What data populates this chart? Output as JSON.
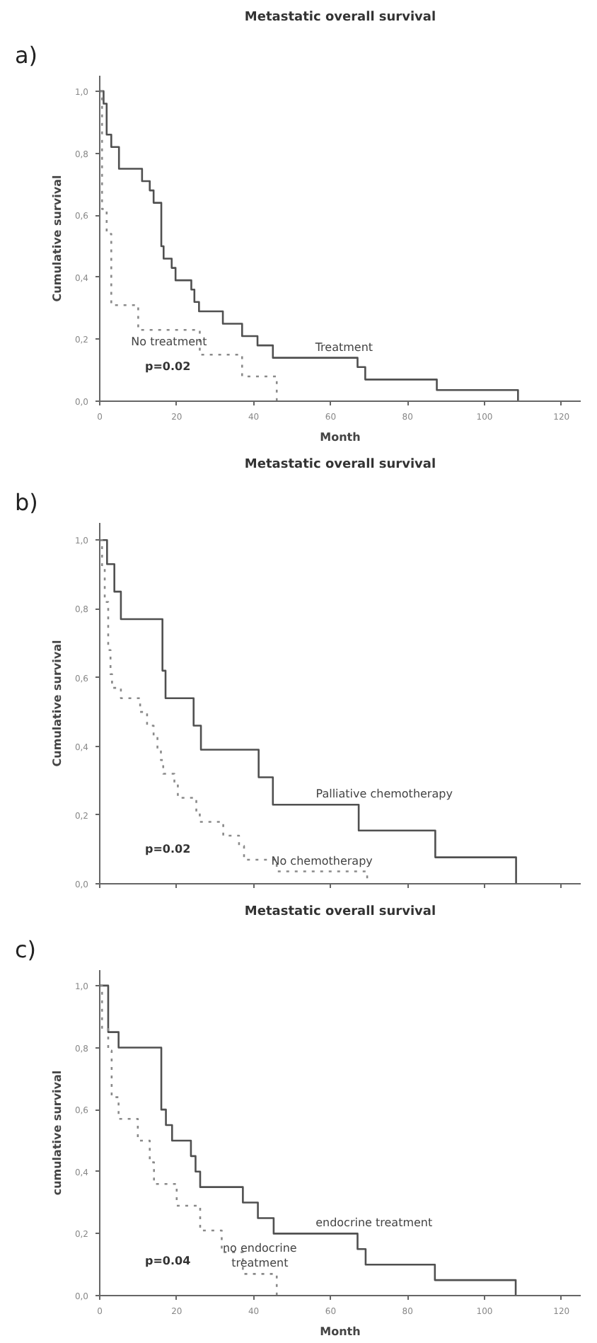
{
  "chart_data": [
    {
      "type": "step",
      "title": "Metastatic overall survival",
      "xlabel": "Month",
      "ylabel": "Cumulative survival",
      "xlim": [
        0,
        125
      ],
      "ylim": [
        0,
        1.05
      ],
      "xticks": [
        0,
        20,
        40,
        60,
        80,
        100,
        120
      ],
      "yticks": [
        {
          "value": 0,
          "label": "0,0"
        },
        {
          "value": 0.2,
          "label": "0,2"
        },
        {
          "value": 0.4,
          "label": "0,4"
        },
        {
          "value": 0.6,
          "label": "0,6"
        },
        {
          "value": 0.8,
          "label": "0,8"
        },
        {
          "value": 1.0,
          "label": "1,0"
        }
      ],
      "grid": false,
      "series": [
        {
          "name": "Treatment",
          "color": "#505050",
          "line_style": "solid",
          "x": [
            0,
            1,
            1.8,
            3,
            5,
            11,
            13,
            14,
            16,
            16.6,
            18.7,
            19.7,
            23.8,
            24.6,
            25.8,
            32,
            37,
            41,
            45,
            67,
            69,
            87.6,
            108.7
          ],
          "values": [
            1.0,
            0.96,
            0.86,
            0.82,
            0.75,
            0.71,
            0.68,
            0.64,
            0.5,
            0.46,
            0.43,
            0.39,
            0.36,
            0.32,
            0.29,
            0.25,
            0.21,
            0.18,
            0.14,
            0.11,
            0.07,
            0.036,
            0.0
          ]
        },
        {
          "name": "No treatment",
          "color": "#8a8a8a",
          "line_style": "dotted",
          "x": [
            0,
            0.6,
            1.8,
            3,
            10,
            26,
            37,
            46
          ],
          "values": [
            1.0,
            0.62,
            0.54,
            0.31,
            0.23,
            0.15,
            0.08,
            0.0
          ]
        }
      ],
      "annotations": [
        "a)",
        "p=0.02"
      ]
    },
    {
      "type": "step",
      "title": "Metastatic overall survival",
      "ylabel": "Cumulative survival",
      "xlim": [
        0,
        125
      ],
      "ylim": [
        0,
        1.05
      ],
      "tick_labels": "y",
      "xticks": [
        {
          "value": 0,
          "label": null
        },
        {
          "value": 20,
          "label": null
        },
        {
          "value": 40,
          "label": null
        },
        {
          "value": 60,
          "label": null
        },
        {
          "value": 80,
          "label": null
        },
        {
          "value": 100,
          "label": null
        },
        {
          "value": 120,
          "label": null
        }
      ],
      "yticks": [
        {
          "value": 0,
          "label": "0,0"
        },
        {
          "value": 0.2,
          "label": "0,2"
        },
        {
          "value": 0.4,
          "label": "0,4"
        },
        {
          "value": 0.6,
          "label": "0,6"
        },
        {
          "value": 0.8,
          "label": "0,8"
        },
        {
          "value": 1.0,
          "label": "1,0"
        }
      ],
      "grid": false,
      "series": [
        {
          "name": "Palliative chemotherapy",
          "color": "#505050",
          "line_style": "solid",
          "x": [
            0,
            1.9,
            3.8,
            5.5,
            16.3,
            17.1,
            24.4,
            26.3,
            41.3,
            45,
            67.3,
            87.2,
            108.2
          ],
          "values": [
            1.0,
            0.93,
            0.85,
            0.77,
            0.62,
            0.54,
            0.46,
            0.39,
            0.31,
            0.23,
            0.155,
            0.077,
            0.0
          ]
        },
        {
          "name": "No chemotherapy",
          "color": "#8a8a8a",
          "line_style": "dotted",
          "x": [
            0,
            0.6,
            1.3,
            2.2,
            2.8,
            3.2,
            5.5,
            10.5,
            12.3,
            14,
            15,
            15.9,
            16.5,
            19.4,
            20.3,
            25.1,
            26,
            32.1,
            36.2,
            37.5,
            46,
            69.5
          ],
          "values": [
            1.0,
            0.92,
            0.82,
            0.68,
            0.61,
            0.57,
            0.54,
            0.5,
            0.46,
            0.43,
            0.39,
            0.36,
            0.32,
            0.29,
            0.25,
            0.21,
            0.18,
            0.14,
            0.11,
            0.07,
            0.036,
            0.0
          ]
        }
      ],
      "annotations": [
        "b)",
        "p=0.02"
      ]
    },
    {
      "type": "step",
      "title": "Metastatic overall survival",
      "xlabel": "Month",
      "ylabel": "cumulative survival",
      "xlim": [
        0,
        125
      ],
      "ylim": [
        0,
        1.05
      ],
      "xticks": [
        0,
        20,
        40,
        60,
        80,
        100,
        120
      ],
      "yticks": [
        {
          "value": 0,
          "label": "0,0"
        },
        {
          "value": 0.2,
          "label": "0,2"
        },
        {
          "value": 0.4,
          "label": "0,4"
        },
        {
          "value": 0.6,
          "label": "0,6"
        },
        {
          "value": 0.8,
          "label": "0,8"
        },
        {
          "value": 1.0,
          "label": "1,0"
        }
      ],
      "grid": false,
      "series": [
        {
          "name": "endocrine treatment",
          "color": "#505050",
          "line_style": "solid",
          "x": [
            0,
            2.2,
            4.9,
            16,
            17.2,
            18.8,
            23.7,
            24.9,
            26.1,
            37.2,
            41.1,
            45.2,
            67,
            69.1,
            87.1,
            108.1
          ],
          "values": [
            1.0,
            0.85,
            0.8,
            0.6,
            0.55,
            0.5,
            0.45,
            0.4,
            0.35,
            0.3,
            0.25,
            0.2,
            0.15,
            0.1,
            0.05,
            0.0
          ]
        },
        {
          "name": "no endocrine\ntreatment",
          "color": "#8a8a8a",
          "line_style": "dotted",
          "x": [
            0,
            0.6,
            2.2,
            3.1,
            4.9,
            9.9,
            13,
            14.1,
            20,
            26.1,
            31.7,
            37.2,
            46
          ],
          "values": [
            1.0,
            0.86,
            0.79,
            0.64,
            0.57,
            0.5,
            0.43,
            0.36,
            0.29,
            0.21,
            0.14,
            0.07,
            0.0
          ]
        }
      ],
      "annotations": [
        "c)",
        "p=0.04"
      ]
    }
  ]
}
